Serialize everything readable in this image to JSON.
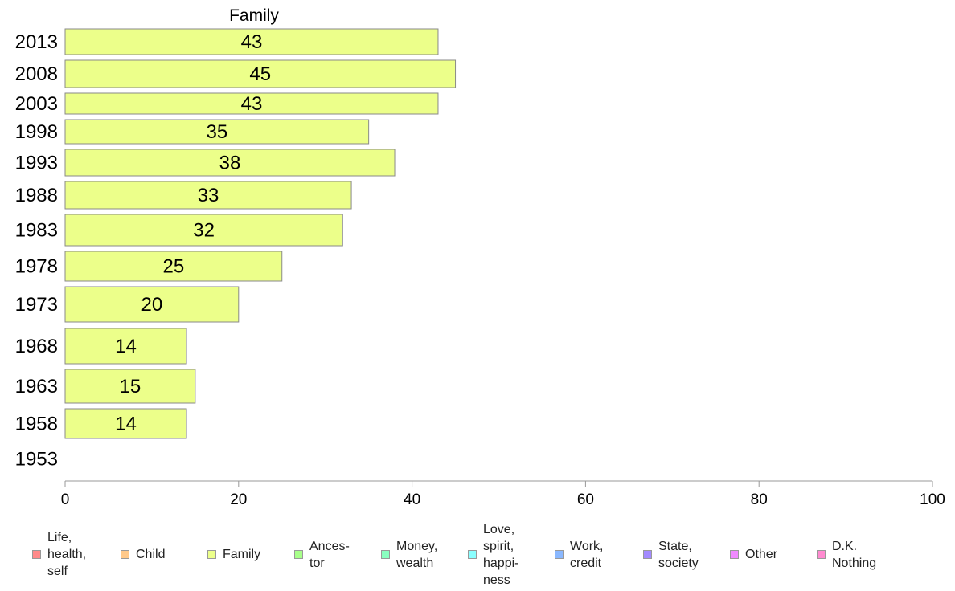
{
  "chart_data": {
    "type": "bar",
    "orientation": "horizontal",
    "title": "Family",
    "categories": [
      "2013",
      "2008",
      "2003",
      "1998",
      "1993",
      "1988",
      "1983",
      "1978",
      "1973",
      "1968",
      "1963",
      "1958",
      "1953"
    ],
    "series": [
      {
        "name": "Family",
        "color": "#ecff8a",
        "values": [
          43,
          45,
          43,
          35,
          38,
          33,
          32,
          25,
          20,
          14,
          15,
          14,
          null
        ],
        "value_labels": [
          "43",
          "45",
          "43",
          "35",
          "38",
          "33",
          "32",
          "25",
          "20",
          "14",
          "15",
          "14",
          ""
        ]
      }
    ],
    "xlabel": "",
    "ylabel": "",
    "xlim": [
      0,
      100
    ],
    "xticks": [
      0,
      20,
      40,
      60,
      80,
      100
    ],
    "grid": false,
    "legend_position": "bottom",
    "legend": [
      {
        "label": "Life,\nhealth,\nself",
        "color": "#ff8a8a"
      },
      {
        "label": "Child",
        "color": "#ffc98a"
      },
      {
        "label": "Family",
        "color": "#ecff8a"
      },
      {
        "label": "Ances-\ntor",
        "color": "#a8ff8a"
      },
      {
        "label": "Money,\nwealth",
        "color": "#8affc0"
      },
      {
        "label": "Love,\nspirit,\nhappi-\nness",
        "color": "#8affff"
      },
      {
        "label": "Work,\ncredit",
        "color": "#8ab8ff"
      },
      {
        "label": "State,\nsociety",
        "color": "#a38aff"
      },
      {
        "label": "Other",
        "color": "#f08aff"
      },
      {
        "label": "D.K.\nNothing",
        "color": "#ff8ad0"
      }
    ]
  }
}
